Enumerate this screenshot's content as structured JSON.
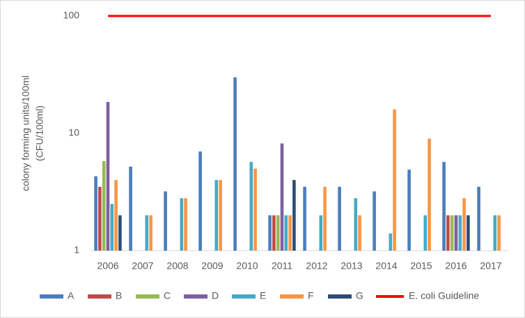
{
  "chart_data": {
    "type": "bar",
    "ylabel": [
      "colony forming units/100ml",
      "(CFU/100ml)"
    ],
    "categories": [
      "2006",
      "2007",
      "2008",
      "2009",
      "2010",
      "2011",
      "2012",
      "2013",
      "2014",
      "2015",
      "2016",
      "2017"
    ],
    "series": [
      {
        "name": "A",
        "color": "#4a7ebb",
        "values": [
          4.3,
          5.2,
          3.2,
          7,
          30,
          2,
          3.5,
          3.5,
          3.2,
          4.9,
          5.7,
          3.5
        ]
      },
      {
        "name": "B",
        "color": "#be4b48",
        "values": [
          3.5,
          null,
          null,
          null,
          null,
          2,
          null,
          null,
          null,
          null,
          2,
          null
        ]
      },
      {
        "name": "C",
        "color": "#98b954",
        "values": [
          5.8,
          null,
          null,
          null,
          null,
          2,
          null,
          null,
          null,
          null,
          2,
          null
        ]
      },
      {
        "name": "D",
        "color": "#7d60a0",
        "values": [
          18.5,
          null,
          null,
          null,
          null,
          8.2,
          null,
          null,
          null,
          null,
          2,
          null
        ]
      },
      {
        "name": "E",
        "color": "#46aac5",
        "values": [
          2.5,
          2,
          2.8,
          4,
          5.7,
          2,
          2,
          2.8,
          1.4,
          2,
          2,
          2
        ]
      },
      {
        "name": "F",
        "color": "#f79646",
        "values": [
          4,
          2,
          2.8,
          4,
          5,
          2,
          3.5,
          2,
          16,
          9,
          2.8,
          2
        ]
      },
      {
        "name": "G",
        "color": "#2c4d75",
        "values": [
          2,
          null,
          null,
          null,
          null,
          4,
          null,
          null,
          null,
          null,
          2,
          null
        ]
      },
      {
        "name": "E. coli Guideline",
        "color": "#ff0000",
        "render": "line",
        "values": [
          100,
          100,
          100,
          100,
          100,
          100,
          100,
          100,
          100,
          100,
          100,
          100
        ]
      }
    ],
    "ylim": [
      1,
      100
    ],
    "yticks": [
      1,
      10,
      100
    ],
    "log_scale": true,
    "grid": false,
    "legend": "bottom"
  }
}
